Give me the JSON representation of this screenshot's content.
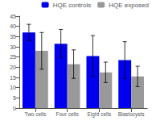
{
  "chart_data": {
    "type": "bar",
    "categories": [
      "Two cells",
      "Four cells",
      "Eight cells",
      "Blastocysts"
    ],
    "series": [
      {
        "name": "HQE controls",
        "color": "#0000ee",
        "values": [
          37,
          31.5,
          25.5,
          23.5
        ],
        "errors": [
          4,
          7,
          10,
          9
        ]
      },
      {
        "name": "HQE exposed",
        "color": "#999999",
        "values": [
          28,
          21.5,
          17.5,
          15.5
        ],
        "errors": [
          9,
          7,
          5,
          5
        ]
      }
    ],
    "ylim": [
      0,
      45
    ],
    "yticks": [
      0,
      5,
      10,
      15,
      20,
      25,
      30,
      35,
      40,
      45
    ],
    "grid": false,
    "legend": "upper right"
  }
}
